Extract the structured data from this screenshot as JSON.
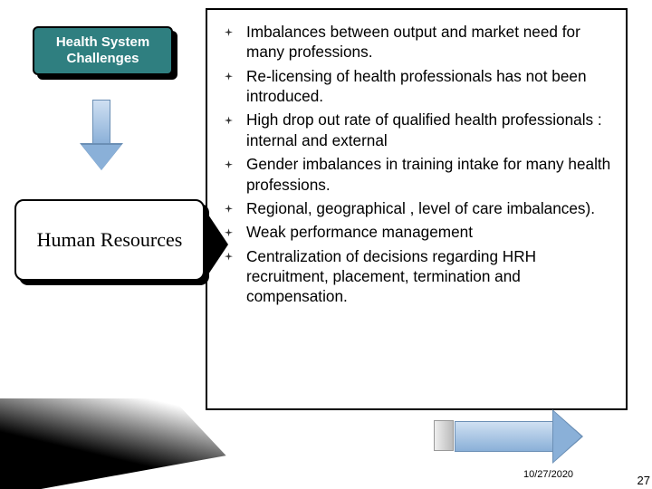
{
  "left": {
    "challenges_box": {
      "text": "Health System Challenges",
      "bg_color": "#2f7f80",
      "text_color": "#ffffff",
      "border_color": "#000000",
      "font_size": 15,
      "font_weight": "bold"
    },
    "down_arrow": {
      "fill_from": "#cfe0f2",
      "fill_to": "#8ab0d8",
      "stroke": "#6b8fb5"
    },
    "hr_box": {
      "text": "Human Resources",
      "bg_color": "#ffffff",
      "text_color": "#000000",
      "border_color": "#000000",
      "font_family": "Georgia, serif",
      "font_size": 22
    }
  },
  "panel": {
    "border_color": "#000000",
    "bullet_marker_color": "#333333",
    "items": [
      "Imbalances between output and market need for many professions.",
      "Re-licensing of health professionals has not been introduced.",
      "High drop out rate of qualified health professionals : internal and external",
      "Gender imbalances in training intake for many health professions.",
      "Regional, geographical , level of care imbalances).",
      "Weak performance management",
      "Centralization of decisions regarding HRH recruitment, placement, termination and compensation."
    ],
    "font_size": 17.2,
    "font_family": "Lucida Sans"
  },
  "right_arrow": {
    "fill_from": "#cfe0f2",
    "fill_to": "#8ab0d8",
    "stroke": "#6b8fb5"
  },
  "footer": {
    "date": "10/27/2020",
    "page": "27"
  },
  "colors": {
    "slide_bg": "#ffffff",
    "bl_wedge": "#000000"
  }
}
